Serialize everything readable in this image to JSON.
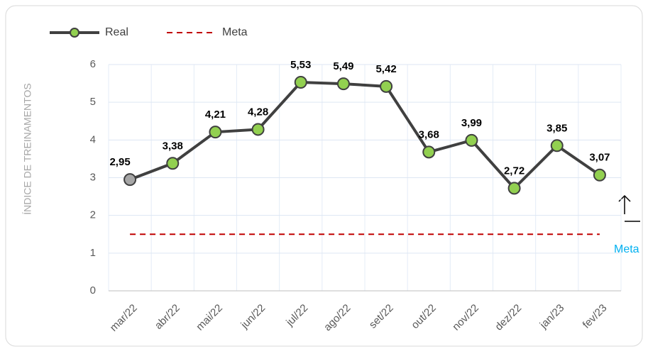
{
  "chart_data": {
    "type": "line",
    "y_label": "ÍNDICE DE TREINAMENTOS",
    "categories": [
      "mar/22",
      "abr/22",
      "mai/22",
      "jun/22",
      "jul/22",
      "ago/22",
      "set/22",
      "out/22",
      "nov/22",
      "dez/22",
      "jan/23",
      "fev/23"
    ],
    "series": [
      {
        "name": "Real",
        "color": "#404040",
        "marker_colors": [
          "#a6a6a6",
          "#92d050",
          "#92d050",
          "#92d050",
          "#92d050",
          "#92d050",
          "#92d050",
          "#92d050",
          "#92d050",
          "#92d050",
          "#92d050",
          "#92d050"
        ],
        "values": [
          2.95,
          3.38,
          4.21,
          4.28,
          5.53,
          5.49,
          5.42,
          3.68,
          3.99,
          2.72,
          3.85,
          3.07
        ],
        "value_labels": [
          "2,95",
          "3,38",
          "4,21",
          "4,28",
          "5,53",
          "5,49",
          "5,42",
          "3,68",
          "3,99",
          "2,72",
          "3,85",
          "3,07"
        ]
      },
      {
        "name": "Meta",
        "color": "#c00000",
        "dashed": true,
        "values": [
          1.5,
          1.5,
          1.5,
          1.5,
          1.5,
          1.5,
          1.5,
          1.5,
          1.5,
          1.5,
          1.5,
          1.5
        ]
      }
    ],
    "annotation": "Meta",
    "annotation_color": "#00b0f0",
    "ylim": [
      0,
      6
    ],
    "yticks": [
      0,
      1,
      2,
      3,
      4,
      5,
      6
    ],
    "grid": true
  }
}
